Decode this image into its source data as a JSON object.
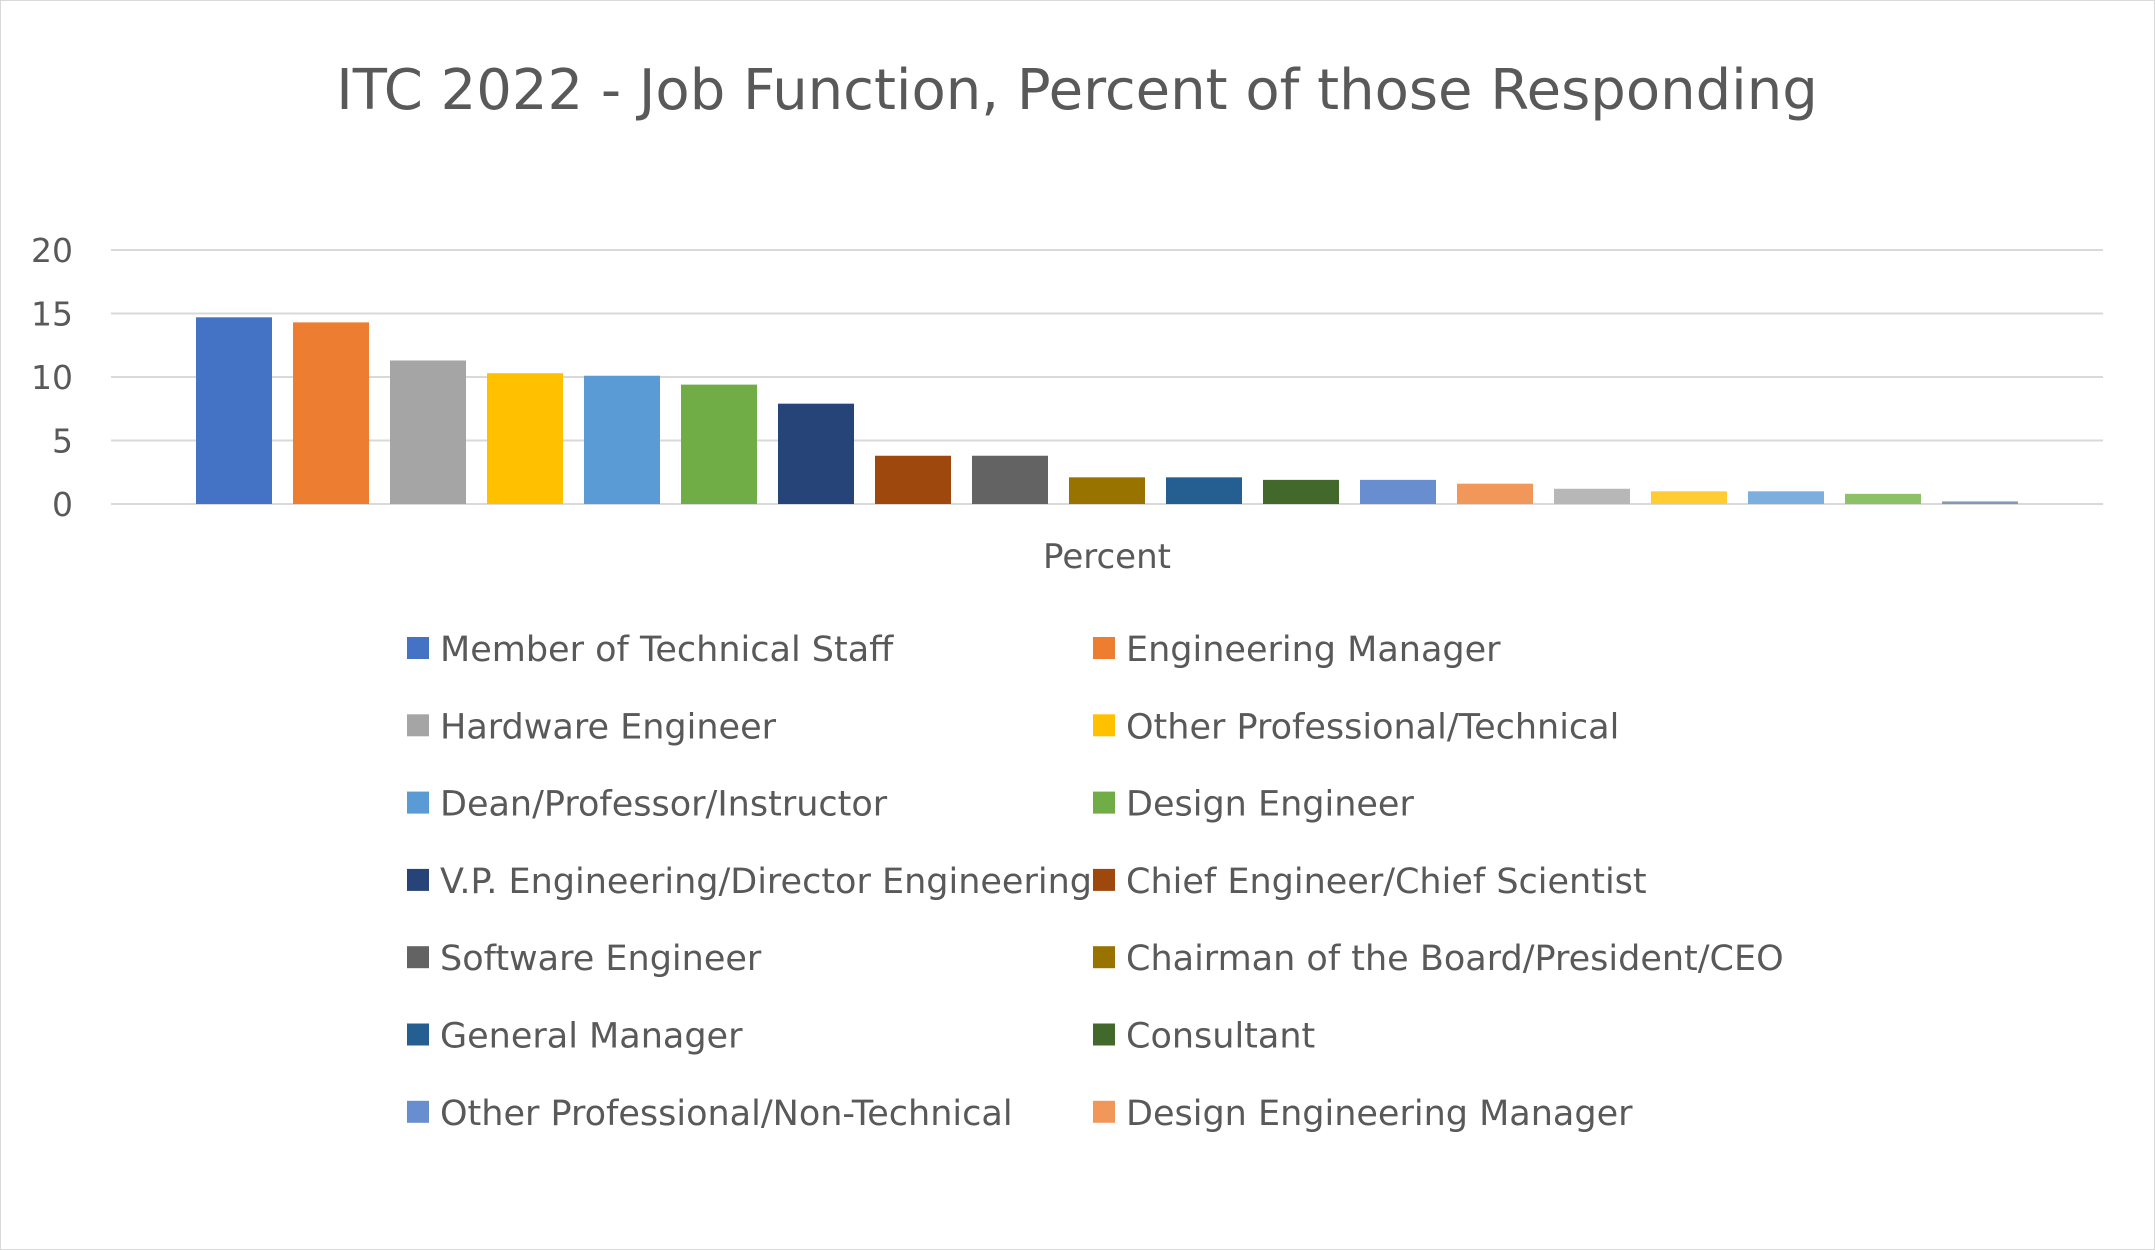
{
  "chart_data": {
    "type": "bar",
    "title": "ITC 2022 - Job Function, Percent of those Responding",
    "xlabel": "Percent",
    "ylabel": "",
    "ylim": [
      0,
      20
    ],
    "yticks": [
      0,
      5,
      10,
      15,
      20
    ],
    "grid": true,
    "legend_position": "bottom",
    "series": [
      {
        "name": "Member of Technical Staff",
        "value": 14.7,
        "color": "#4472C4"
      },
      {
        "name": "Engineering Manager",
        "value": 14.3,
        "color": "#ED7D31"
      },
      {
        "name": "Hardware Engineer",
        "value": 11.3,
        "color": "#A5A5A5"
      },
      {
        "name": "Other Professional/Technical",
        "value": 10.3,
        "color": "#FFC000"
      },
      {
        "name": "Dean/Professor/Instructor",
        "value": 10.1,
        "color": "#5B9BD5"
      },
      {
        "name": "Design Engineer",
        "value": 9.4,
        "color": "#70AD47"
      },
      {
        "name": "V.P. Engineering/Director Engineering",
        "value": 7.9,
        "color": "#264478"
      },
      {
        "name": "Chief Engineer/Chief Scientist",
        "value": 3.8,
        "color": "#9E480E"
      },
      {
        "name": "Software Engineer",
        "value": 3.8,
        "color": "#636363"
      },
      {
        "name": "Chairman of the Board/President/CEO",
        "value": 2.1,
        "color": "#997300"
      },
      {
        "name": "General Manager",
        "value": 2.1,
        "color": "#255E91"
      },
      {
        "name": "Consultant",
        "value": 1.9,
        "color": "#43682B"
      },
      {
        "name": "Other Professional/Non-Technical",
        "value": 1.9,
        "color": "#698ED0"
      },
      {
        "name": "Design Engineering Manager",
        "value": 1.6,
        "color": "#F1975A"
      },
      {
        "name": "",
        "value": 1.2,
        "color": "#B7B7B7"
      },
      {
        "name": "",
        "value": 1.0,
        "color": "#FFCD33"
      },
      {
        "name": "",
        "value": 1.0,
        "color": "#7CAFDD"
      },
      {
        "name": "",
        "value": 0.8,
        "color": "#8CC168"
      },
      {
        "name": "",
        "value": 0.2,
        "color": "#8497B0"
      }
    ]
  }
}
